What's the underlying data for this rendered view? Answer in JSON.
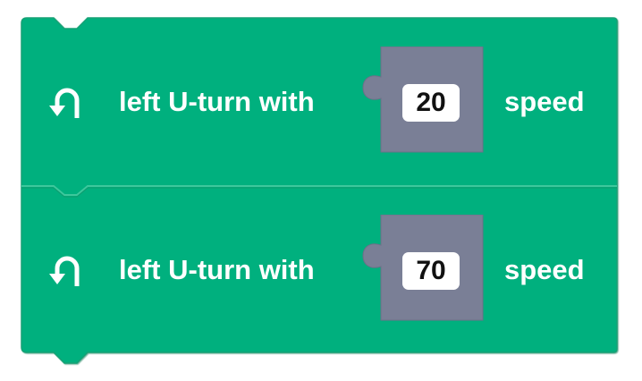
{
  "colors": {
    "block_fill": "#00b07e",
    "block_edge": "#17a174",
    "slot_fill": "#7a7f96",
    "value_bg": "#ffffff",
    "text": "#ffffff"
  },
  "blocks": [
    {
      "icon": "u-turn-left-icon",
      "label": "left U-turn with",
      "value": "20",
      "unit": "speed"
    },
    {
      "icon": "u-turn-left-icon",
      "label": "left U-turn with",
      "value": "70",
      "unit": "speed"
    }
  ]
}
